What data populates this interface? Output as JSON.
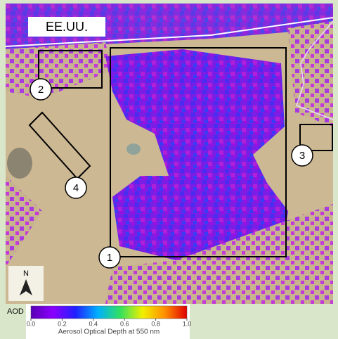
{
  "map": {
    "country_label": "EE.UU.",
    "compass": "N",
    "sites": [
      {
        "label": "1"
      },
      {
        "label": "2"
      },
      {
        "label": "3"
      },
      {
        "label": "4"
      }
    ]
  },
  "colorbar": {
    "label": "AOD",
    "title": "Aerosol Optical Depth at 550 nm",
    "lim": [
      0,
      1
    ],
    "colors": [
      "#5a00b4",
      "#8a00ff",
      "#2020ff",
      "#00b0ff",
      "#30e060",
      "#f0f000",
      "#ff9000",
      "#e00000"
    ],
    "ticks": [
      {
        "value": 0,
        "label": "0.0"
      },
      {
        "value": 0.2,
        "label": "0.2"
      },
      {
        "value": 0.4,
        "label": "0.4"
      },
      {
        "value": 0.6,
        "label": "0.6"
      },
      {
        "value": 0.8,
        "label": "0.8"
      },
      {
        "value": 1,
        "label": "1.0"
      }
    ]
  }
}
